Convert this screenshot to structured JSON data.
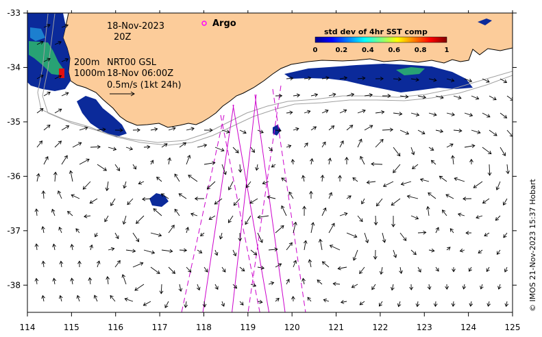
{
  "map": {
    "lon_range": [
      114,
      125
    ],
    "lat_range": [
      -38.5,
      -33
    ],
    "x_ticks": [
      "114",
      "115",
      "116",
      "117",
      "118",
      "119",
      "120",
      "121",
      "122",
      "123",
      "124",
      "125"
    ],
    "y_ticks": [
      "-33",
      "-34",
      "-35",
      "-36",
      "-37",
      "-38"
    ],
    "land_color": "#fccc9a",
    "track_color": "#cc00cc"
  },
  "annotations": {
    "date": "18-Nov-2023",
    "hour": "20Z",
    "depth_200": "200m",
    "depth_1000": "1000m",
    "product": "NRT00 GSL",
    "product_time": "18-Nov 06:00Z",
    "scale_label": "0.5m/s (1kt 24h)"
  },
  "argo": {
    "label": "Argo",
    "marker_color": "#ff00ff"
  },
  "legend": {
    "title": "std dev of 4hr SST comp",
    "ticks": [
      "0",
      "0.2",
      "0.4",
      "0.6",
      "0.8",
      "1"
    ],
    "colormap": "jet"
  },
  "credit": "© IMOS 21-Nov-2023 15:37 Hobart"
}
